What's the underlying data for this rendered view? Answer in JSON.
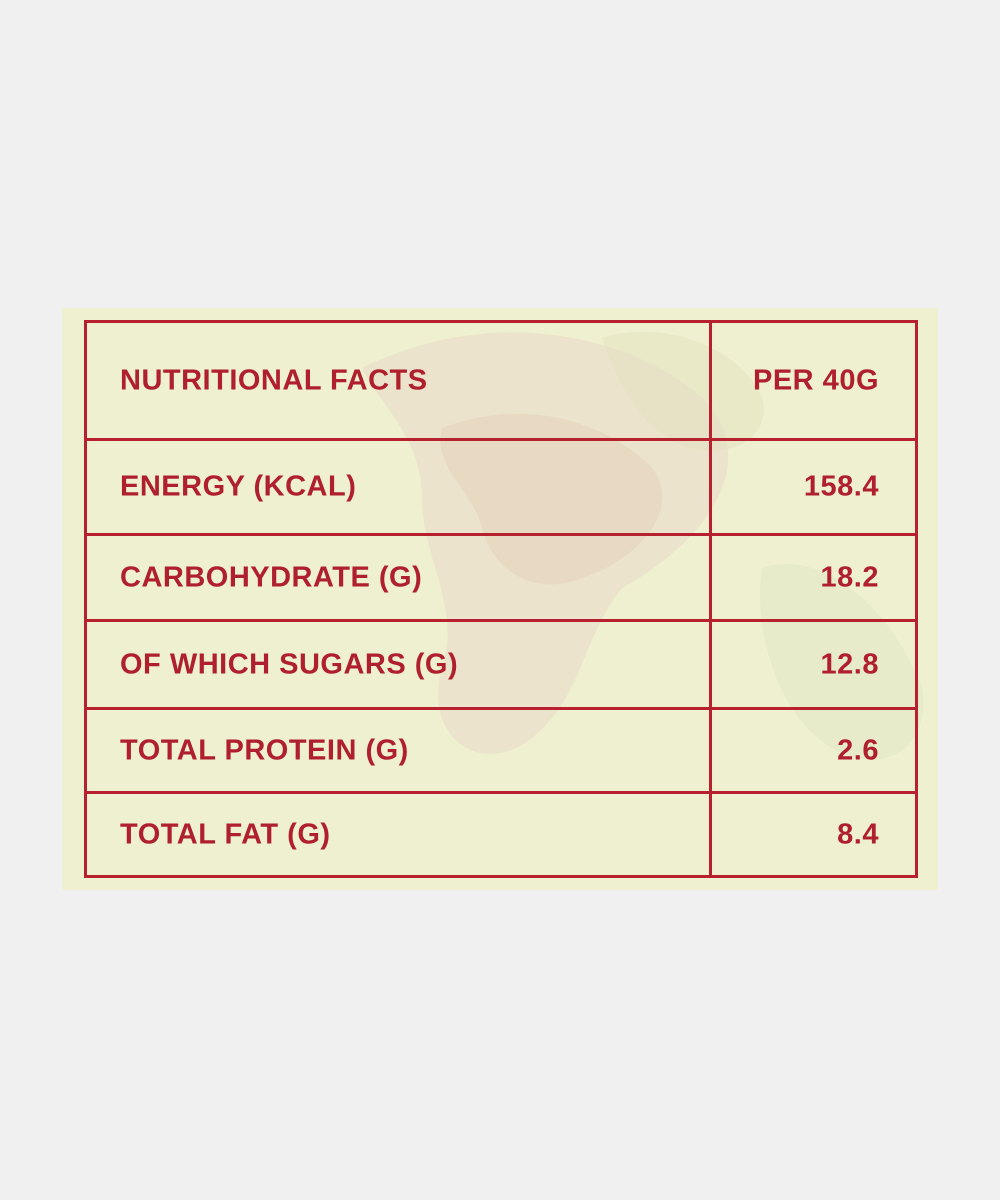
{
  "table": {
    "header": {
      "name": "NUTRITIONAL FACTS",
      "value": "PER 40G"
    },
    "rows": [
      {
        "name": "ENERGY (KCAL)",
        "value": "158.4"
      },
      {
        "name": "CARBOHYDRATE (G)",
        "value": "18.2"
      },
      {
        "name": "OF WHICH SUGARS (G)",
        "value": "12.8"
      },
      {
        "name": "TOTAL PROTEIN (G)",
        "value": "2.6"
      },
      {
        "name": "TOTAL FAT (G)",
        "value": "8.4"
      }
    ]
  },
  "colors": {
    "text": "#b01f2e",
    "border": "#b7202f",
    "panel": "#eef0cf",
    "background": "#f0f0f0"
  }
}
